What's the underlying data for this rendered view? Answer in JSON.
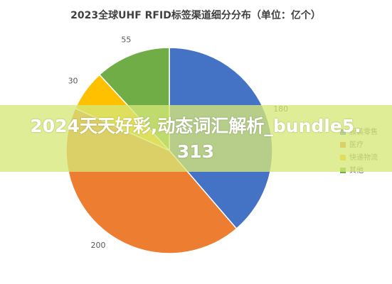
{
  "chart_data": {
    "type": "pie",
    "title": "2023全球UHF RFID标签渠道细分分布（单位：亿个）",
    "categories": [
      "服装零售",
      "医疗",
      "快递物流",
      "其他"
    ],
    "values": [
      180,
      200,
      30,
      55
    ],
    "colors": [
      "#4472c4",
      "#ed7d31",
      "#ffc000",
      "#70ad47"
    ],
    "legend": "right"
  },
  "banner": "2024天天好彩,动态词汇解析_bundle5.313"
}
